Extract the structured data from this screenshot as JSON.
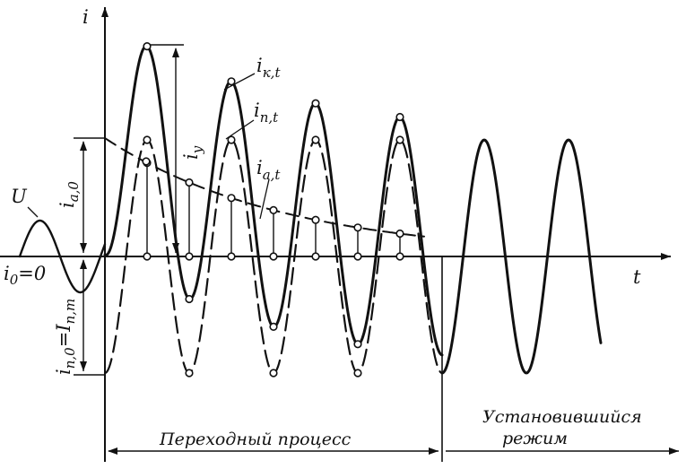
{
  "axes": {
    "y_label": "i",
    "x_label": "t"
  },
  "labels": {
    "voltage": "U",
    "i0": "i",
    "i0_sub": "0",
    "i0_rest": "=0",
    "ia0": "i",
    "ia0_sub": "a,0",
    "in0": "i",
    "in0_sub": "n,0",
    "in0_mid": "=I",
    "in0_sub2": "n,m",
    "iy": "i",
    "iy_sub": "y",
    "ikt": "i",
    "ikt_sub": "к,t",
    "int": "i",
    "int_sub": "n,t",
    "iat": "i",
    "iat_sub": "a,t"
  },
  "captions": {
    "transient": "Переходный процесс",
    "steady_line1": "Установившийся",
    "steady_line2": "режим"
  }
}
